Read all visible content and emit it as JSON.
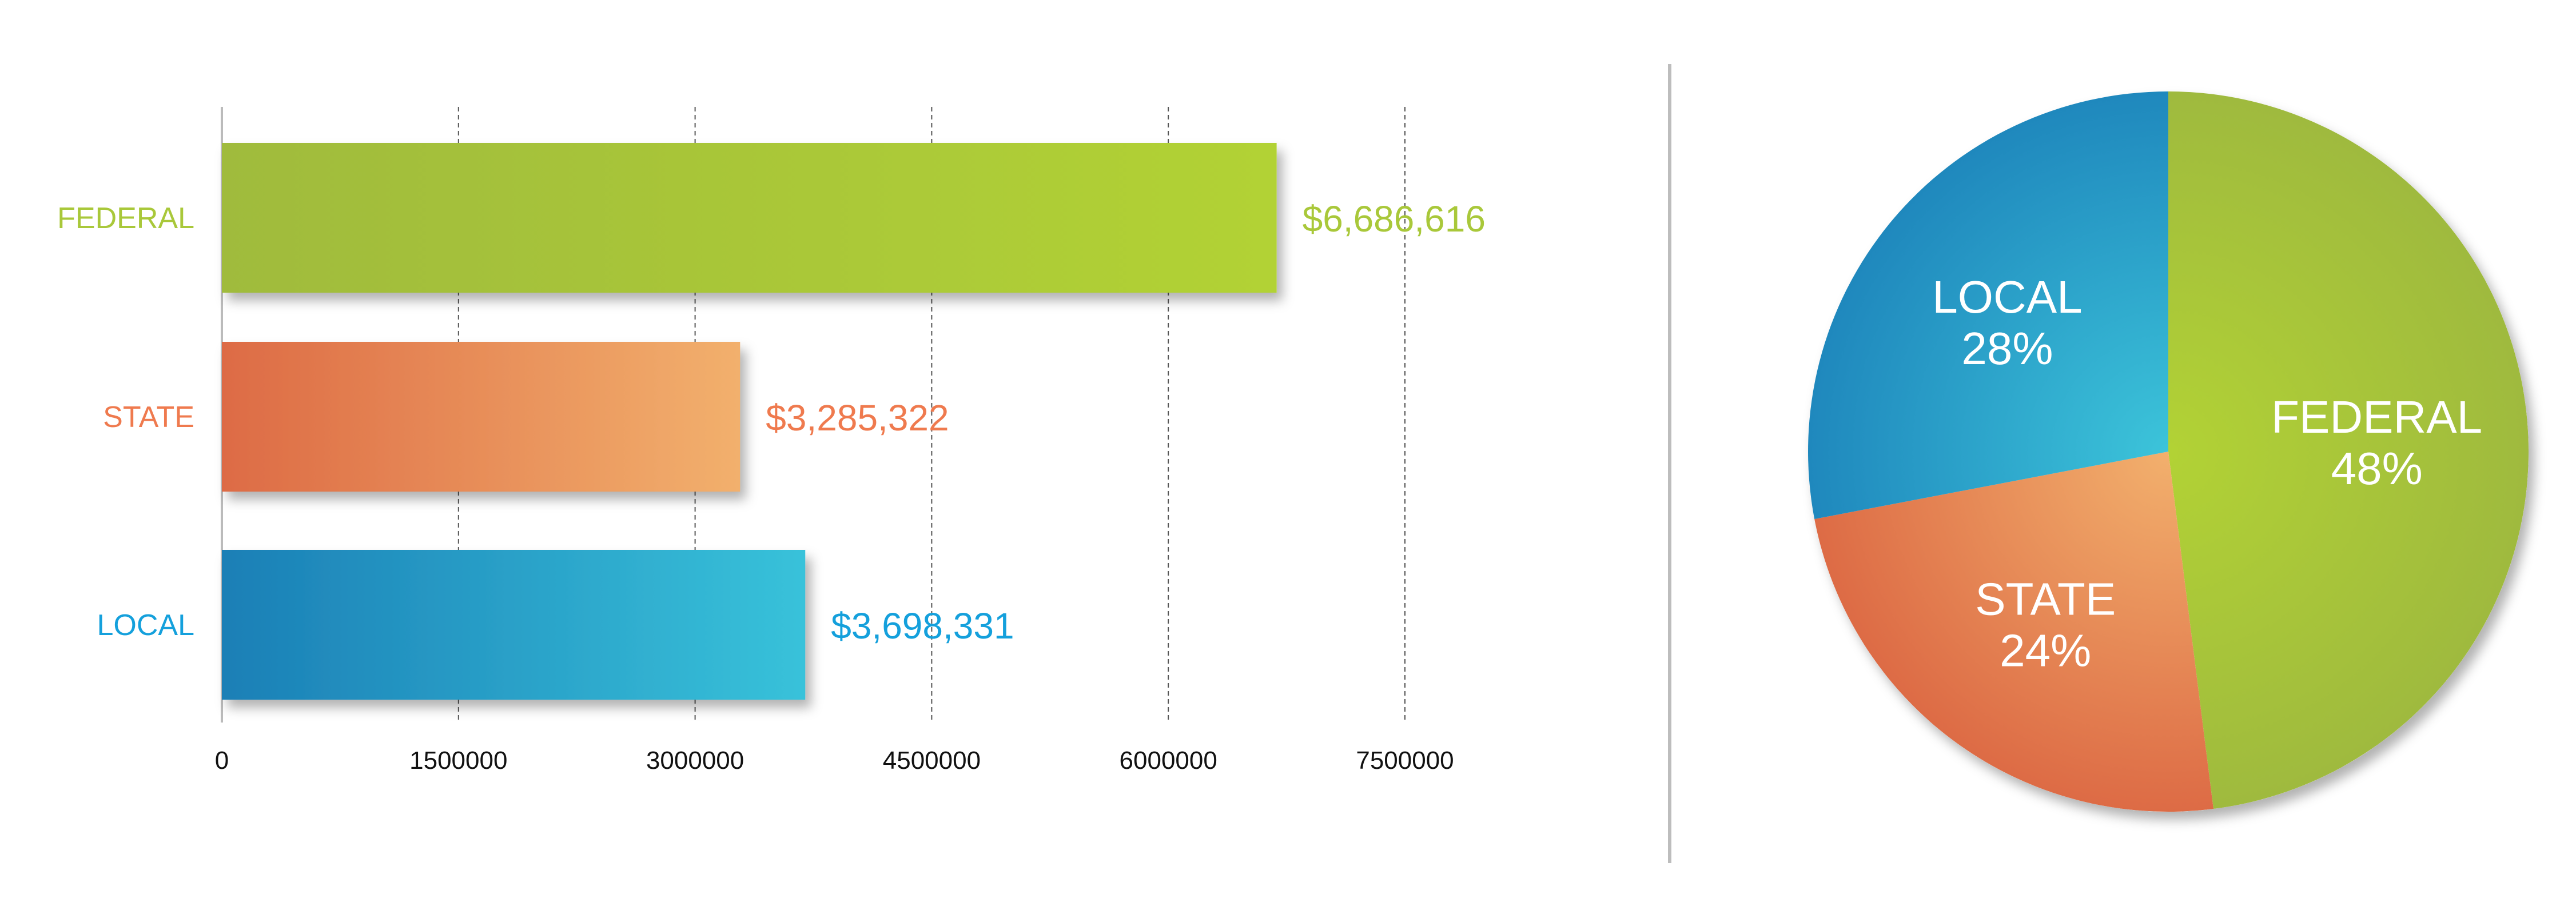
{
  "chart_data": [
    {
      "type": "bar",
      "orientation": "horizontal",
      "categories": [
        "FEDERAL",
        "STATE",
        "LOCAL"
      ],
      "values": [
        6686616,
        3285322,
        3698331
      ],
      "value_labels": [
        "$6,686,616",
        "$3,285,322",
        "$3,698,331"
      ],
      "colors": [
        [
          "#a0bb3c",
          "#b2d235"
        ],
        [
          "#dd6b45",
          "#f2b06d"
        ],
        [
          "#1b7fb6",
          "#38c2da"
        ]
      ],
      "label_colors": [
        "#a9c83a",
        "#ef7a4e",
        "#14a0dc"
      ],
      "xlim": [
        0,
        7500000
      ],
      "xticks": [
        0,
        1500000,
        3000000,
        4500000,
        6000000,
        7500000
      ],
      "xtick_labels": [
        "0",
        "$1,500,000",
        "$3,000,000",
        "$4,500,000",
        "$6,000,000",
        "$7,500,000"
      ],
      "grid": "vertical dashed",
      "title": "",
      "xlabel": "",
      "ylabel": ""
    },
    {
      "type": "pie",
      "start": "top, clockwise",
      "slices": [
        {
          "label": "FEDERAL",
          "value": 48,
          "pct_label": "48%",
          "colors": [
            "#b2d235",
            "#9fba3e"
          ]
        },
        {
          "label": "STATE",
          "value": 24,
          "pct_label": "24%",
          "colors": [
            "#f2b06d",
            "#dd6b45"
          ]
        },
        {
          "label": "LOCAL",
          "value": 28,
          "pct_label": "28%",
          "colors": [
            "#3cc4da",
            "#1f88bd"
          ]
        }
      ]
    }
  ]
}
